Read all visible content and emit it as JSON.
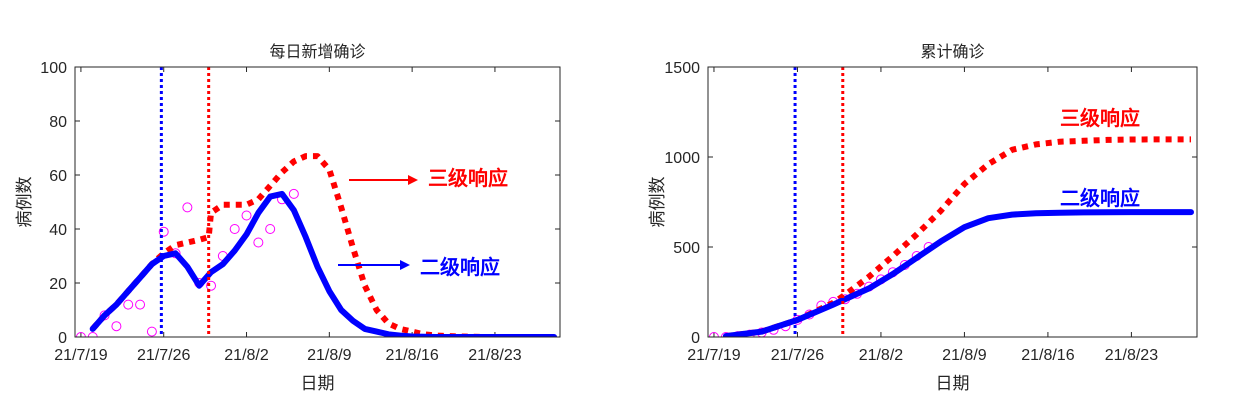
{
  "chart_data": [
    {
      "type": "line",
      "title": "每日新增确诊",
      "xlabel": "日期",
      "ylabel": "病例数",
      "xlim": [
        -0.5,
        40.5
      ],
      "ylim": [
        0,
        100
      ],
      "xticks": [
        0,
        7,
        14,
        21,
        28,
        35
      ],
      "xtick_labels": [
        "21/7/19",
        "21/7/26",
        "21/8/2",
        "21/8/9",
        "21/8/16",
        "21/8/23"
      ],
      "yticks": [
        0,
        20,
        40,
        60,
        80,
        100
      ],
      "ytick_labels": [
        "0",
        "20",
        "40",
        "60",
        "80",
        "100"
      ],
      "vlines": [
        {
          "x": 6.8,
          "color": "#0000ff"
        },
        {
          "x": 10.8,
          "color": "#ff0000"
        }
      ],
      "series": [
        {
          "name": "三级响应",
          "color": "#ff0000",
          "style": "dotted",
          "x": [
            1,
            2,
            3,
            4,
            5,
            6,
            7,
            8,
            9,
            10,
            10.8,
            11,
            12,
            13,
            14,
            15,
            16,
            17,
            18,
            19,
            20,
            21,
            22,
            23,
            24,
            25,
            26,
            27,
            28,
            29,
            30,
            32,
            34,
            36,
            38,
            40
          ],
          "values": [
            3,
            8,
            12,
            17,
            22,
            27,
            31,
            34,
            35,
            36,
            37,
            46,
            49,
            49,
            49,
            51,
            56,
            61,
            65,
            67,
            67,
            62,
            48,
            33,
            19,
            10,
            5,
            3,
            2,
            1,
            0.5,
            0.2,
            0,
            0,
            0,
            0
          ]
        },
        {
          "name": "二级响应",
          "color": "#0000ff",
          "style": "solid",
          "x": [
            1,
            2,
            3,
            4,
            5,
            6,
            7,
            8,
            9,
            10,
            11,
            12,
            13,
            14,
            15,
            16,
            17,
            18,
            19,
            20,
            21,
            22,
            23,
            24,
            25,
            26,
            27,
            28,
            30,
            32,
            34,
            36,
            38,
            40
          ],
          "values": [
            3,
            8,
            12,
            17,
            22,
            27,
            30,
            31,
            26,
            19,
            24,
            27,
            32,
            38,
            46,
            52,
            53,
            47,
            37,
            26,
            17,
            10,
            6,
            3,
            2,
            1,
            0.5,
            0.2,
            0,
            0,
            0,
            0,
            0,
            0
          ]
        },
        {
          "color": "#ff00ff",
          "style": "markers",
          "x": [
            0,
            1,
            2,
            3,
            4,
            5,
            6,
            7,
            8,
            9,
            10,
            11,
            12,
            13,
            14,
            15,
            16,
            17,
            18
          ],
          "values": [
            0,
            0,
            8,
            4,
            12,
            12,
            2,
            39,
            31,
            48,
            20,
            19,
            30,
            40,
            45,
            35,
            40,
            51,
            53
          ]
        }
      ],
      "annotations": [
        {
          "text": "三级响应",
          "color": "#ff0000"
        },
        {
          "text": "二级响应",
          "color": "#0000ff"
        }
      ]
    },
    {
      "type": "line",
      "title": "累计确诊",
      "xlabel": "日期",
      "ylabel": "病例数",
      "xlim": [
        -0.5,
        40.5
      ],
      "ylim": [
        0,
        1500
      ],
      "xticks": [
        0,
        7,
        14,
        21,
        28,
        35
      ],
      "xtick_labels": [
        "21/7/19",
        "21/7/26",
        "21/8/2",
        "21/8/9",
        "21/8/16",
        "21/8/23"
      ],
      "yticks": [
        0,
        500,
        1000,
        1500
      ],
      "ytick_labels": [
        "0",
        "500",
        "1000",
        "1500"
      ],
      "vlines": [
        {
          "x": 6.8,
          "color": "#0000ff"
        },
        {
          "x": 10.8,
          "color": "#ff0000"
        }
      ],
      "series": [
        {
          "name": "三级响应",
          "color": "#ff0000",
          "style": "dotted",
          "x": [
            1,
            4,
            7,
            10,
            11,
            13,
            15,
            17,
            19,
            21,
            23,
            25,
            27,
            29,
            31,
            33,
            35,
            37,
            40
          ],
          "values": [
            5,
            30,
            95,
            190,
            235,
            335,
            450,
            570,
            700,
            850,
            960,
            1040,
            1070,
            1085,
            1090,
            1095,
            1097,
            1098,
            1098
          ]
        },
        {
          "name": "二级响应",
          "color": "#0000ff",
          "style": "solid",
          "x": [
            1,
            4,
            7,
            10,
            13,
            15,
            17,
            19,
            21,
            23,
            25,
            27,
            29,
            31,
            33,
            35,
            37,
            40
          ],
          "values": [
            5,
            30,
            95,
            180,
            270,
            350,
            440,
            530,
            610,
            660,
            680,
            688,
            690,
            692,
            693,
            694,
            694,
            694
          ]
        },
        {
          "color": "#ff00ff",
          "style": "markers",
          "x": [
            0,
            1,
            2,
            3,
            4,
            5,
            6,
            7,
            8,
            9,
            10,
            11,
            12,
            13,
            14,
            15,
            16,
            17,
            18
          ],
          "values": [
            0,
            0,
            5,
            13,
            25,
            40,
            60,
            95,
            125,
            175,
            195,
            210,
            240,
            280,
            320,
            360,
            400,
            450,
            500
          ]
        }
      ],
      "annotations": [
        {
          "text": "三级响应",
          "color": "#ff0000"
        },
        {
          "text": "二级响应",
          "color": "#0000ff"
        }
      ]
    }
  ]
}
